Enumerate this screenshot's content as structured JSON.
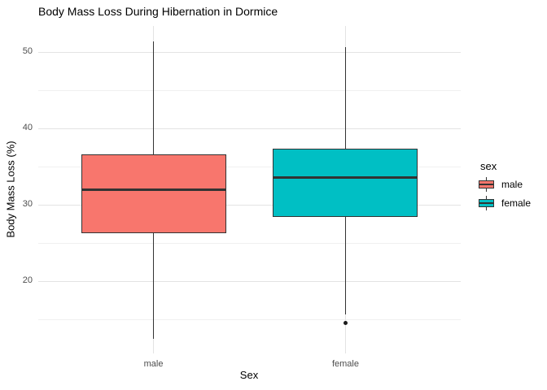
{
  "chart_data": {
    "type": "boxplot",
    "title": "Body Mass Loss During Hibernation in Dormice",
    "xlabel": "Sex",
    "ylabel": "Body Mass Loss (%)",
    "categories": [
      "male",
      "female"
    ],
    "series": [
      {
        "name": "male",
        "fill_color": "#F8766D",
        "whisker_low": 12.5,
        "q1": 26.3,
        "median": 32.0,
        "q3": 36.6,
        "whisker_high": 51.4,
        "outliers": []
      },
      {
        "name": "female",
        "fill_color": "#00BFC4",
        "whisker_low": 15.7,
        "q1": 28.4,
        "median": 33.6,
        "q3": 37.4,
        "whisker_high": 50.6,
        "outliers": [
          14.6
        ]
      }
    ],
    "y_major_ticks": [
      20,
      30,
      40,
      50
    ],
    "y_minor_ticks": [
      15,
      25,
      35,
      45
    ],
    "ylim": [
      10.6,
      53.4
    ],
    "grid": true,
    "legend": {
      "title": "sex",
      "position": "right",
      "entries": [
        {
          "label": "male",
          "color": "#F8766D"
        },
        {
          "label": "female",
          "color": "#00BFC4"
        }
      ]
    },
    "colors": {
      "grid_major": "#E3E3E3",
      "grid_minor": "#F0F0F0",
      "box_border": "#333333",
      "axis_text": "#4d4d4d",
      "background": "#FFFFFF"
    }
  }
}
